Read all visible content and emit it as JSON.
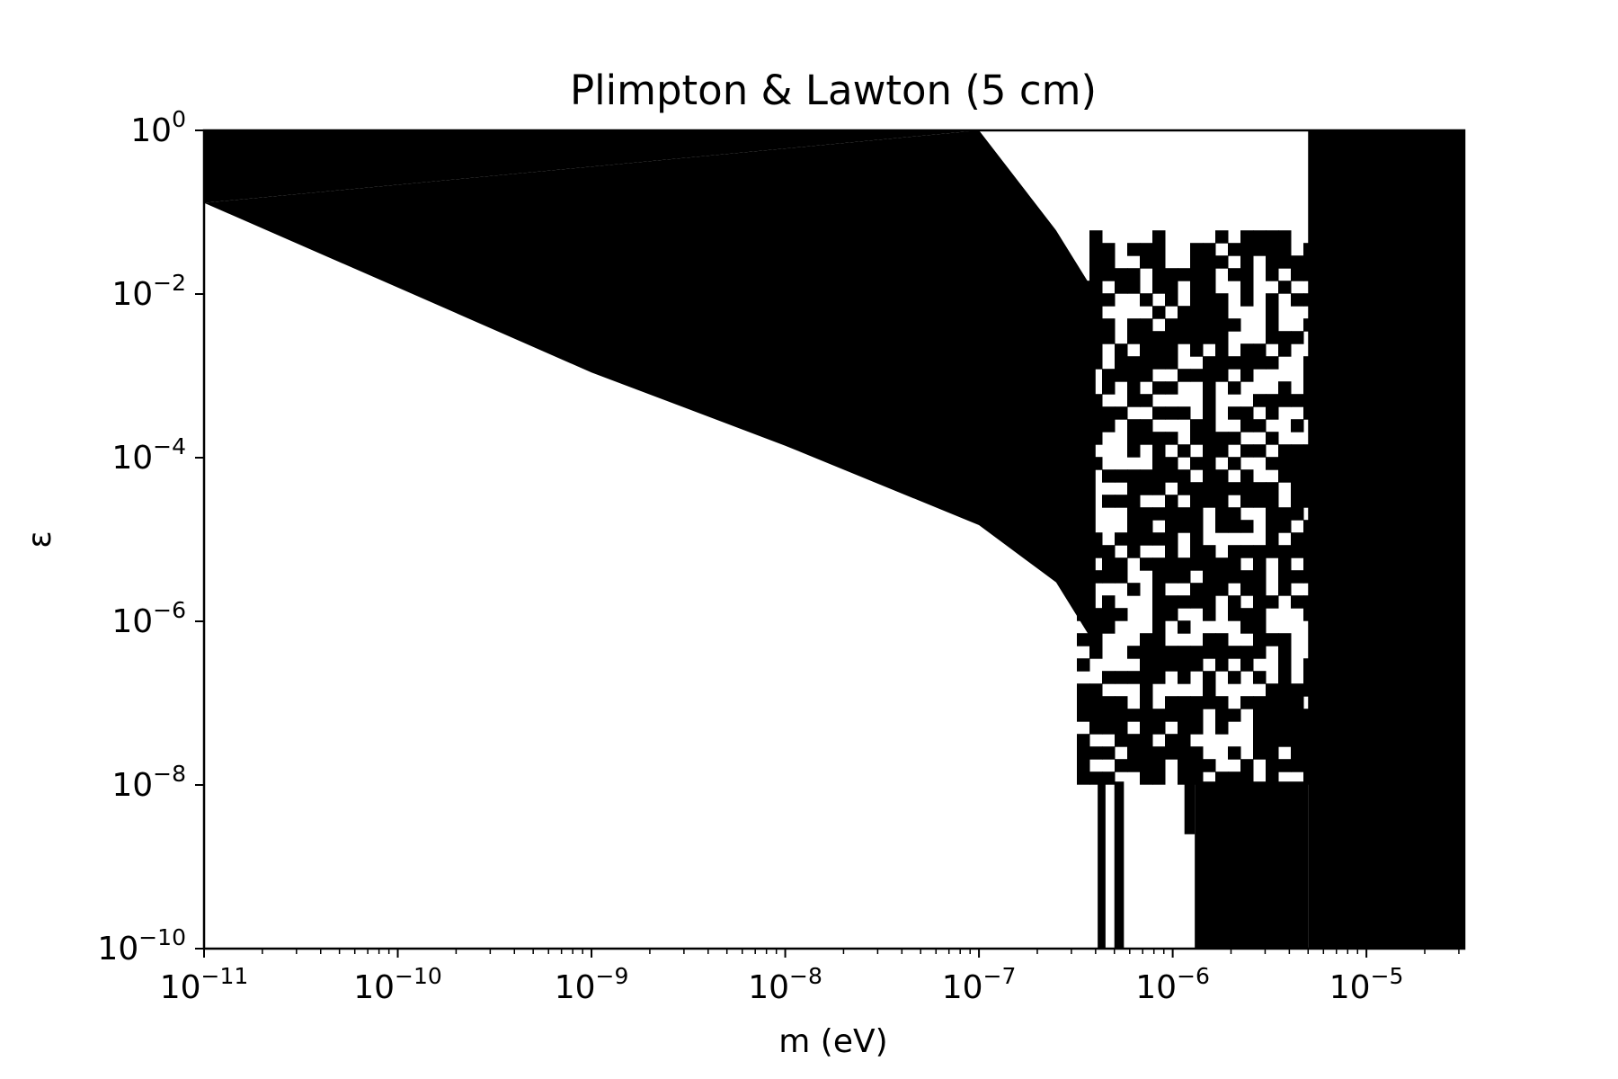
{
  "chart_data": {
    "type": "heatmap",
    "title": "Plimpton & Lawton (5 cm)",
    "xlabel": "m (eV)",
    "ylabel": "ε",
    "x_scale": "log",
    "y_scale": "log",
    "xlim": [
      1e-11,
      3.2e-05
    ],
    "ylim": [
      1e-10,
      1
    ],
    "grid": false,
    "legend": "none",
    "colors": {
      "excluded": "#000000",
      "allowed": "#ffffff"
    },
    "x_ticks": [
      {
        "base": "10",
        "exp": "−11",
        "value": 1e-11
      },
      {
        "base": "10",
        "exp": "−10",
        "value": 1e-10
      },
      {
        "base": "10",
        "exp": "−9",
        "value": 1e-09
      },
      {
        "base": "10",
        "exp": "−8",
        "value": 1e-08
      },
      {
        "base": "10",
        "exp": "−7",
        "value": 1e-07
      },
      {
        "base": "10",
        "exp": "−6",
        "value": 1e-06
      },
      {
        "base": "10",
        "exp": "−5",
        "value": 1e-05
      }
    ],
    "y_ticks": [
      {
        "base": "10",
        "exp": "0",
        "value": 1
      },
      {
        "base": "10",
        "exp": "−2",
        "value": 0.01
      },
      {
        "base": "10",
        "exp": "−4",
        "value": 0.0001
      },
      {
        "base": "10",
        "exp": "−6",
        "value": 1e-06
      },
      {
        "base": "10",
        "exp": "−8",
        "value": 1e-08
      },
      {
        "base": "10",
        "exp": "−10",
        "value": 1e-10
      }
    ],
    "excluded_regions": [
      {
        "name": "upper-wedge",
        "shape": "polygon",
        "points_m_eps": [
          [
            1e-11,
            0.13
          ],
          [
            1e-10,
            0.012
          ],
          [
            1e-09,
            0.0011
          ],
          [
            1e-08,
            0.00014
          ],
          [
            1e-07,
            1.5e-05
          ],
          [
            2.5e-07,
            3e-06
          ],
          [
            4e-07,
            5e-07
          ],
          [
            4e-07,
            0.01
          ],
          [
            2.5e-07,
            0.06
          ],
          [
            1e-07,
            1
          ]
        ]
      },
      {
        "name": "upper-left-strip",
        "shape": "polygon",
        "points_m_eps": [
          [
            1e-11,
            0.13
          ],
          [
            1e-11,
            1
          ],
          [
            1e-07,
            1
          ]
        ]
      },
      {
        "name": "right-band",
        "shape": "rect",
        "m_range": [
          5e-06,
          3.2e-05
        ],
        "eps_range": [
          1e-10,
          1
        ]
      },
      {
        "name": "lower-right-block",
        "shape": "rect",
        "m_range": [
          1.3e-06,
          5e-06
        ],
        "eps_range": [
          1e-10,
          1.1e-08
        ]
      },
      {
        "name": "lower-right-step",
        "shape": "rect",
        "m_range": [
          1.15e-06,
          1.3e-06
        ],
        "eps_range": [
          2.5e-09,
          1.1e-08
        ]
      },
      {
        "name": "thin-bar-1",
        "shape": "rect",
        "m_range": [
          4.1e-07,
          4.5e-07
        ],
        "eps_range": [
          1e-10,
          1.1e-08
        ]
      },
      {
        "name": "thin-bar-2",
        "shape": "rect",
        "m_range": [
          5e-07,
          5.6e-07
        ],
        "eps_range": [
          1e-10,
          1.1e-08
        ]
      }
    ],
    "noisy_region": {
      "m_range": [
        3.2e-07,
        5e-06
      ],
      "eps_range": [
        1.1e-08,
        0.06
      ],
      "pattern": "mixed excluded/allowed cells",
      "excluded_fraction": 0.62
    }
  }
}
